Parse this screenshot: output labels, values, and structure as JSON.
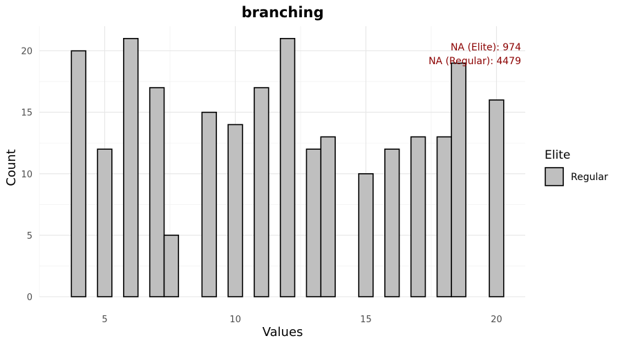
{
  "chart_data": {
    "type": "bar",
    "title": "branching",
    "xlabel": "Values",
    "ylabel": "Count",
    "xlim": [
      2.5,
      21.1
    ],
    "ylim": [
      0,
      22
    ],
    "x_ticks": [
      5,
      10,
      15,
      20
    ],
    "y_ticks": [
      0,
      5,
      10,
      15,
      20
    ],
    "grid": true,
    "legend": {
      "title": "Elite",
      "position": "right",
      "entries": [
        {
          "label": "Regular",
          "color": "#bfbfbf"
        }
      ]
    },
    "series": [
      {
        "name": "Regular",
        "color": "#bfbfbf",
        "x": [
          4,
          5,
          6,
          7,
          7.55,
          9,
          10,
          11,
          12,
          13,
          13.55,
          15,
          16,
          17,
          18,
          18.55,
          20
        ],
        "values": [
          20,
          12,
          21,
          17,
          5,
          15,
          14,
          17,
          21,
          12,
          13,
          10,
          12,
          13,
          13,
          19,
          16
        ]
      }
    ],
    "annotations": [
      {
        "text": "NA (Elite): 974",
        "color": "#8b0000",
        "position": "top-right"
      },
      {
        "text": "NA (Regular): 4479",
        "color": "#8b0000",
        "position": "top-right"
      }
    ]
  }
}
